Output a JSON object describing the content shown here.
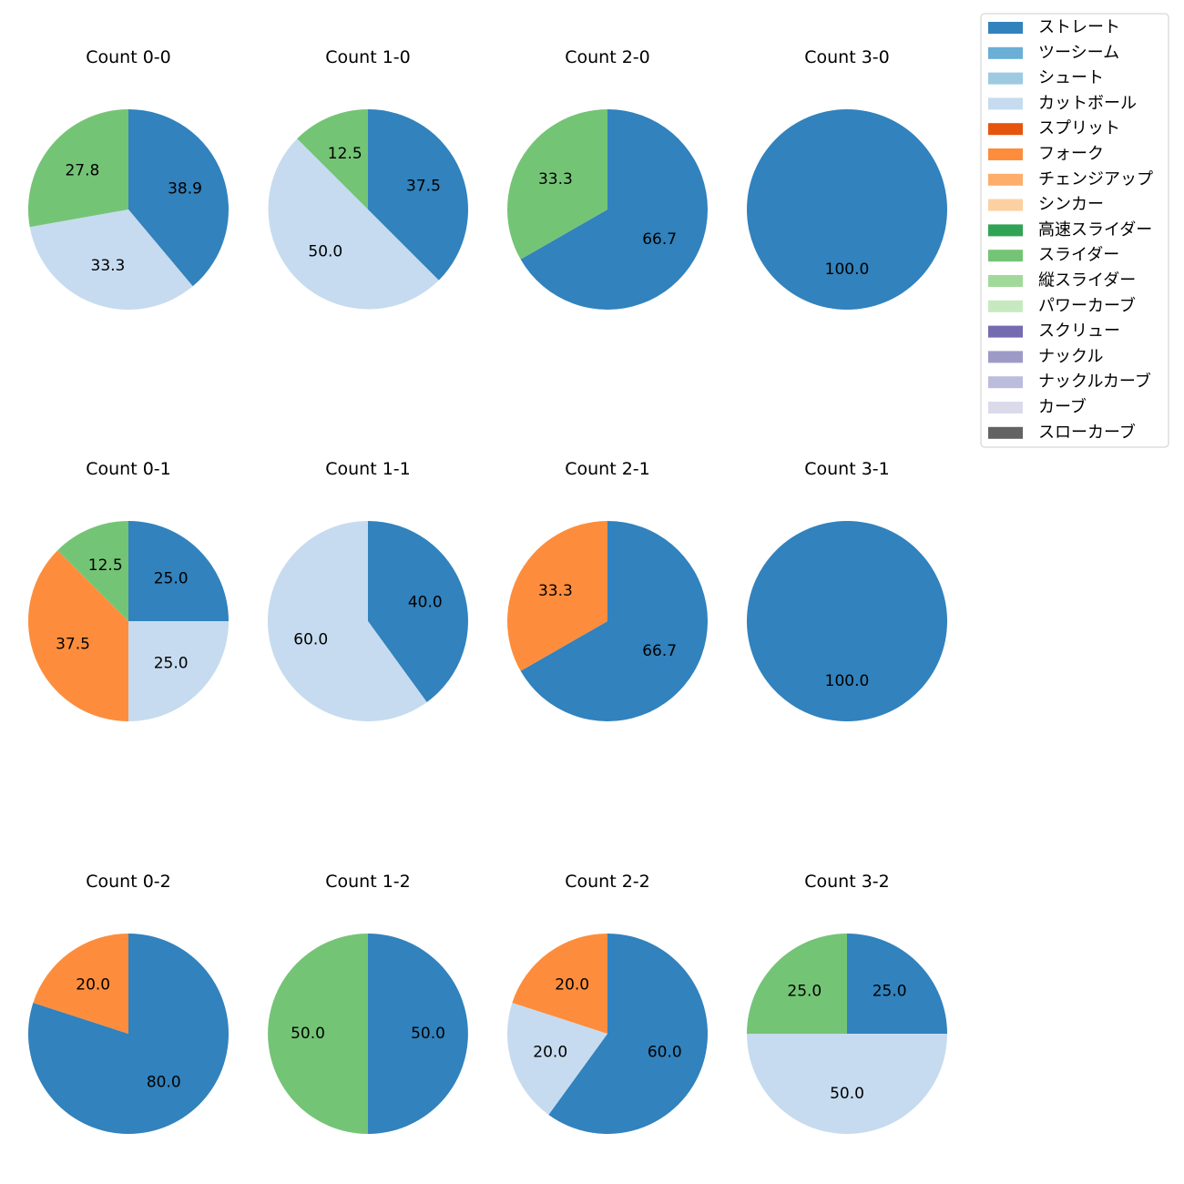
{
  "chart_data": {
    "type": "pie",
    "legend_position": "top-right",
    "legend": [
      {
        "name": "ストレート",
        "color": "#3182bd"
      },
      {
        "name": "ツーシーム",
        "color": "#6baed6"
      },
      {
        "name": "シュート",
        "color": "#9ecae1"
      },
      {
        "name": "カットボール",
        "color": "#c6dbef"
      },
      {
        "name": "スプリット",
        "color": "#e6550d"
      },
      {
        "name": "フォーク",
        "color": "#fd8d3c"
      },
      {
        "name": "チェンジアップ",
        "color": "#fdae6b"
      },
      {
        "name": "シンカー",
        "color": "#fdd0a2"
      },
      {
        "name": "高速スライダー",
        "color": "#31a354"
      },
      {
        "name": "スライダー",
        "color": "#74c476"
      },
      {
        "name": "縦スライダー",
        "color": "#a1d99b"
      },
      {
        "name": "パワーカーブ",
        "color": "#c7e9c0"
      },
      {
        "name": "スクリュー",
        "color": "#756bb1"
      },
      {
        "name": "ナックル",
        "color": "#9e9ac8"
      },
      {
        "name": "ナックルカーブ",
        "color": "#bcbddc"
      },
      {
        "name": "カーブ",
        "color": "#dadaeb"
      },
      {
        "name": "スローカーブ",
        "color": "#636363"
      }
    ],
    "pies": [
      {
        "title": "Count 0-0",
        "slices": [
          {
            "pitch": "ストレート",
            "value": 38.9
          },
          {
            "pitch": "カットボール",
            "value": 33.3
          },
          {
            "pitch": "スライダー",
            "value": 27.8
          }
        ]
      },
      {
        "title": "Count 1-0",
        "slices": [
          {
            "pitch": "ストレート",
            "value": 37.5
          },
          {
            "pitch": "カットボール",
            "value": 50.0
          },
          {
            "pitch": "スライダー",
            "value": 12.5
          }
        ]
      },
      {
        "title": "Count 2-0",
        "slices": [
          {
            "pitch": "ストレート",
            "value": 66.7
          },
          {
            "pitch": "スライダー",
            "value": 33.3
          }
        ]
      },
      {
        "title": "Count 3-0",
        "slices": [
          {
            "pitch": "ストレート",
            "value": 100.0
          }
        ]
      },
      {
        "title": "Count 0-1",
        "slices": [
          {
            "pitch": "ストレート",
            "value": 25.0
          },
          {
            "pitch": "カットボール",
            "value": 25.0
          },
          {
            "pitch": "フォーク",
            "value": 37.5
          },
          {
            "pitch": "スライダー",
            "value": 12.5
          }
        ]
      },
      {
        "title": "Count 1-1",
        "slices": [
          {
            "pitch": "ストレート",
            "value": 40.0
          },
          {
            "pitch": "カットボール",
            "value": 60.0
          }
        ]
      },
      {
        "title": "Count 2-1",
        "slices": [
          {
            "pitch": "ストレート",
            "value": 66.7
          },
          {
            "pitch": "フォーク",
            "value": 33.3
          }
        ]
      },
      {
        "title": "Count 3-1",
        "slices": [
          {
            "pitch": "ストレート",
            "value": 100.0
          }
        ]
      },
      {
        "title": "Count 0-2",
        "slices": [
          {
            "pitch": "ストレート",
            "value": 80.0
          },
          {
            "pitch": "フォーク",
            "value": 20.0
          }
        ]
      },
      {
        "title": "Count 1-2",
        "slices": [
          {
            "pitch": "ストレート",
            "value": 50.0
          },
          {
            "pitch": "スライダー",
            "value": 50.0
          }
        ]
      },
      {
        "title": "Count 2-2",
        "slices": [
          {
            "pitch": "ストレート",
            "value": 60.0
          },
          {
            "pitch": "カットボール",
            "value": 20.0
          },
          {
            "pitch": "フォーク",
            "value": 20.0
          }
        ]
      },
      {
        "title": "Count 3-2",
        "slices": [
          {
            "pitch": "ストレート",
            "value": 25.0
          },
          {
            "pitch": "カットボール",
            "value": 50.0
          },
          {
            "pitch": "スライダー",
            "value": 25.0
          }
        ]
      }
    ]
  }
}
